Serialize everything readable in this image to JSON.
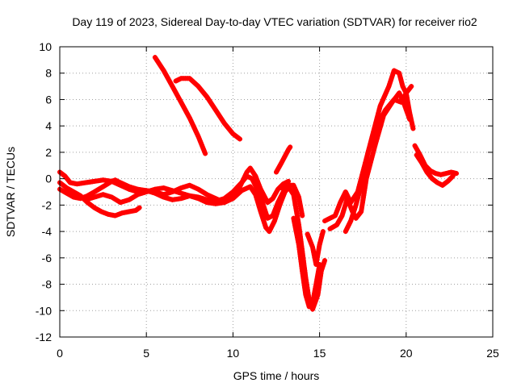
{
  "chart_data": {
    "type": "scatter",
    "title": "Day 119 of 2023, Sidereal Day-to-day VTEC variation (SDTVAR) for receiver rio2",
    "xlabel": "GPS time / hours",
    "ylabel": "SDTVAR / TECUs",
    "xlim": [
      0,
      25
    ],
    "ylim": [
      -12,
      10
    ],
    "xticks": [
      "0",
      "5",
      "10",
      "15",
      "20",
      "25"
    ],
    "yticks": [
      "-12",
      "-10",
      "-8",
      "-6",
      "-4",
      "-2",
      "0",
      "2",
      "4",
      "6",
      "8",
      "10"
    ],
    "grid": true,
    "marker": "plus",
    "color": "#ff0000",
    "series": [
      {
        "points": [
          [
            0.0,
            0.5
          ],
          [
            0.3,
            0.2
          ],
          [
            0.6,
            -0.3
          ],
          [
            1.0,
            -0.4
          ],
          [
            1.5,
            -0.3
          ],
          [
            2.0,
            -0.2
          ],
          [
            2.5,
            -0.1
          ],
          [
            3.0,
            -0.2
          ],
          [
            3.5,
            -0.5
          ],
          [
            4.0,
            -0.8
          ],
          [
            4.5,
            -1.0
          ],
          [
            5.0,
            -0.9
          ],
          [
            5.5,
            -1.0
          ],
          [
            6.0,
            -1.2
          ],
          [
            6.5,
            -1.0
          ],
          [
            7.0,
            -0.7
          ],
          [
            7.5,
            -0.5
          ],
          [
            8.0,
            -0.8
          ],
          [
            8.5,
            -1.2
          ],
          [
            9.0,
            -1.5
          ],
          [
            9.5,
            -1.8
          ],
          [
            10.0,
            -1.4
          ],
          [
            10.4,
            -0.6
          ],
          [
            10.8,
            0.5
          ],
          [
            11.0,
            0.8
          ],
          [
            11.3,
            0.2
          ],
          [
            11.6,
            -0.8
          ],
          [
            12.0,
            -1.8
          ],
          [
            12.3,
            -1.5
          ],
          [
            12.6,
            -0.8
          ],
          [
            12.9,
            -0.4
          ],
          [
            13.2,
            -0.2
          ]
        ]
      },
      {
        "points": [
          [
            0.0,
            -0.8
          ],
          [
            0.4,
            -1.1
          ],
          [
            0.8,
            -1.4
          ],
          [
            1.2,
            -1.5
          ],
          [
            1.6,
            -1.3
          ],
          [
            2.0,
            -1.0
          ],
          [
            2.5,
            -0.6
          ],
          [
            3.0,
            -0.2
          ],
          [
            3.2,
            -0.1
          ],
          [
            3.5,
            -0.3
          ],
          [
            4.0,
            -0.6
          ],
          [
            4.5,
            -0.8
          ],
          [
            5.0,
            -0.9
          ],
          [
            5.5,
            -1.1
          ],
          [
            6.0,
            -1.4
          ],
          [
            6.5,
            -1.6
          ],
          [
            7.0,
            -1.5
          ],
          [
            7.5,
            -1.3
          ],
          [
            8.0,
            -1.4
          ],
          [
            8.5,
            -1.6
          ],
          [
            9.0,
            -1.7
          ],
          [
            9.5,
            -1.5
          ],
          [
            10.0,
            -1.0
          ],
          [
            10.5,
            -0.3
          ],
          [
            10.8,
            0.2
          ],
          [
            11.1,
            0.0
          ],
          [
            11.4,
            -0.8
          ],
          [
            11.7,
            -1.8
          ],
          [
            12.0,
            -3.0
          ],
          [
            12.3,
            -2.8
          ],
          [
            12.6,
            -1.8
          ],
          [
            12.9,
            -1.0
          ]
        ]
      },
      {
        "points": [
          [
            0.0,
            -0.3
          ],
          [
            0.4,
            -0.7
          ],
          [
            0.8,
            -1.0
          ],
          [
            1.2,
            -1.3
          ],
          [
            1.6,
            -1.8
          ],
          [
            2.0,
            -2.2
          ],
          [
            2.4,
            -2.5
          ],
          [
            2.8,
            -2.7
          ],
          [
            3.2,
            -2.8
          ],
          [
            3.6,
            -2.6
          ],
          [
            4.0,
            -2.5
          ],
          [
            4.4,
            -2.4
          ],
          [
            4.6,
            -2.2
          ]
        ]
      },
      {
        "points": [
          [
            1.5,
            -1.6
          ],
          [
            2.0,
            -1.4
          ],
          [
            2.5,
            -1.2
          ],
          [
            3.0,
            -1.4
          ],
          [
            3.5,
            -1.8
          ],
          [
            4.0,
            -1.6
          ],
          [
            4.5,
            -1.2
          ],
          [
            5.0,
            -1.0
          ],
          [
            5.5,
            -0.8
          ],
          [
            6.0,
            -0.7
          ],
          [
            6.5,
            -0.9
          ],
          [
            7.0,
            -1.1
          ],
          [
            7.5,
            -1.3
          ],
          [
            8.0,
            -1.5
          ],
          [
            8.5,
            -1.8
          ],
          [
            9.0,
            -1.9
          ],
          [
            9.5,
            -1.8
          ],
          [
            10.0,
            -1.5
          ],
          [
            10.5,
            -0.9
          ],
          [
            11.0,
            -0.6
          ],
          [
            11.3,
            -1.2
          ],
          [
            11.6,
            -2.5
          ],
          [
            11.9,
            -3.7
          ],
          [
            12.1,
            -4.0
          ],
          [
            12.4,
            -3.2
          ],
          [
            12.7,
            -2.0
          ],
          [
            13.0,
            -1.0
          ],
          [
            13.3,
            -0.5
          ],
          [
            13.5,
            -0.5
          ],
          [
            13.8,
            -1.4
          ],
          [
            14.0,
            -2.8
          ]
        ]
      },
      {
        "points": [
          [
            5.5,
            9.2
          ],
          [
            6.0,
            8.2
          ],
          [
            6.5,
            7.0
          ],
          [
            7.0,
            5.8
          ],
          [
            7.5,
            4.6
          ],
          [
            8.0,
            3.2
          ],
          [
            8.4,
            1.9
          ]
        ]
      },
      {
        "points": [
          [
            6.7,
            7.4
          ],
          [
            7.0,
            7.6
          ],
          [
            7.5,
            7.6
          ],
          [
            8.0,
            7.0
          ],
          [
            8.5,
            6.2
          ],
          [
            9.0,
            5.2
          ],
          [
            9.5,
            4.2
          ],
          [
            10.0,
            3.4
          ],
          [
            10.4,
            3.0
          ]
        ]
      },
      {
        "points": [
          [
            12.5,
            0.5
          ],
          [
            12.8,
            1.2
          ],
          [
            13.0,
            1.7
          ],
          [
            13.2,
            2.2
          ],
          [
            13.3,
            2.4
          ]
        ]
      },
      {
        "points": [
          [
            12.8,
            -0.7
          ],
          [
            13.2,
            -0.6
          ],
          [
            13.5,
            -1.2
          ],
          [
            13.8,
            -3.5
          ],
          [
            14.0,
            -5.5
          ],
          [
            14.2,
            -7.5
          ],
          [
            14.4,
            -9.2
          ],
          [
            14.6,
            -9.9
          ],
          [
            14.9,
            -8.8
          ],
          [
            15.1,
            -7.0
          ],
          [
            15.3,
            -6.2
          ]
        ]
      },
      {
        "points": [
          [
            13.5,
            -3.0
          ],
          [
            13.8,
            -5.0
          ],
          [
            14.0,
            -7.0
          ],
          [
            14.2,
            -8.8
          ],
          [
            14.4,
            -9.7
          ],
          [
            14.6,
            -9.4
          ],
          [
            14.8,
            -8.0
          ],
          [
            15.0,
            -6.5
          ]
        ]
      },
      {
        "points": [
          [
            14.3,
            -4.2
          ],
          [
            14.6,
            -5.2
          ],
          [
            14.8,
            -6.5
          ],
          [
            15.0,
            -5.0
          ],
          [
            15.2,
            -4.0
          ]
        ]
      },
      {
        "points": [
          [
            15.3,
            -3.2
          ],
          [
            15.6,
            -3.0
          ],
          [
            15.9,
            -2.8
          ],
          [
            16.2,
            -1.8
          ],
          [
            16.5,
            -1.0
          ],
          [
            16.8,
            -1.8
          ],
          [
            17.2,
            -1.0
          ],
          [
            17.5,
            0.5
          ],
          [
            18.0,
            3.0
          ],
          [
            18.5,
            5.5
          ],
          [
            19.0,
            7.0
          ],
          [
            19.3,
            8.2
          ],
          [
            19.6,
            8.0
          ],
          [
            19.8,
            7.0
          ],
          [
            20.0,
            6.5
          ],
          [
            20.2,
            5.0
          ],
          [
            20.4,
            3.8
          ]
        ]
      },
      {
        "points": [
          [
            15.6,
            -3.8
          ],
          [
            16.0,
            -3.5
          ],
          [
            16.3,
            -2.8
          ],
          [
            16.6,
            -1.5
          ],
          [
            16.9,
            -2.5
          ],
          [
            17.1,
            -3.0
          ],
          [
            17.4,
            -2.5
          ],
          [
            17.7,
            0.0
          ],
          [
            18.2,
            2.5
          ],
          [
            18.7,
            4.8
          ],
          [
            19.2,
            5.8
          ],
          [
            19.6,
            6.5
          ],
          [
            19.9,
            5.6
          ],
          [
            20.2,
            4.5
          ]
        ]
      },
      {
        "points": [
          [
            16.5,
            -4.0
          ],
          [
            16.8,
            -3.2
          ],
          [
            17.1,
            -2.0
          ],
          [
            17.4,
            -0.5
          ],
          [
            17.8,
            2.0
          ],
          [
            18.3,
            4.0
          ],
          [
            18.8,
            5.2
          ],
          [
            19.3,
            6.0
          ],
          [
            19.7,
            5.8
          ],
          [
            20.0,
            6.5
          ],
          [
            20.3,
            7.0
          ]
        ]
      },
      {
        "points": [
          [
            20.5,
            2.5
          ],
          [
            20.8,
            1.8
          ],
          [
            21.1,
            1.0
          ],
          [
            21.4,
            0.6
          ],
          [
            21.7,
            0.4
          ],
          [
            22.0,
            0.3
          ],
          [
            22.3,
            0.4
          ],
          [
            22.6,
            0.5
          ],
          [
            22.9,
            0.4
          ]
        ]
      },
      {
        "points": [
          [
            20.6,
            1.8
          ],
          [
            20.9,
            1.2
          ],
          [
            21.2,
            0.5
          ],
          [
            21.5,
            0.0
          ],
          [
            21.8,
            -0.3
          ],
          [
            22.1,
            -0.5
          ],
          [
            22.4,
            -0.2
          ],
          [
            22.7,
            0.2
          ]
        ]
      }
    ]
  }
}
